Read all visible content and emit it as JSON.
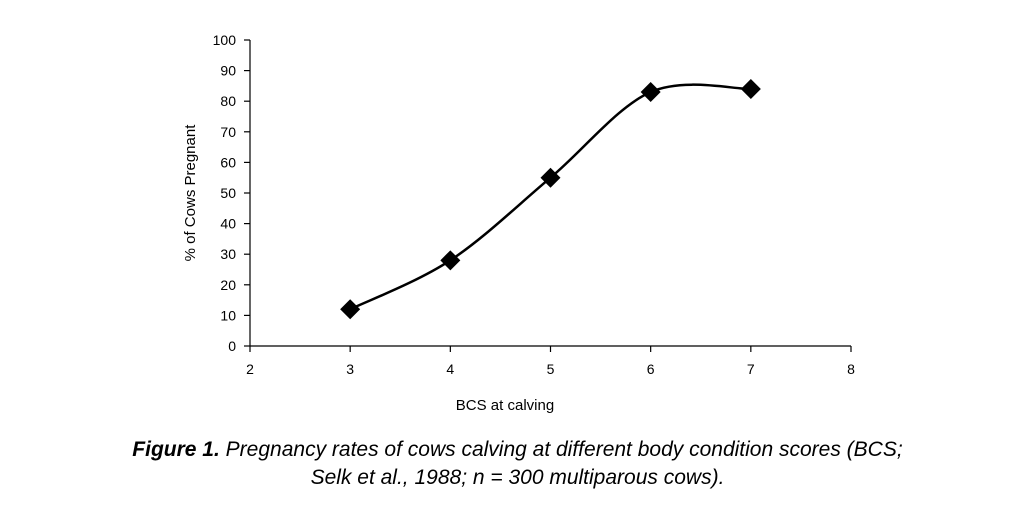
{
  "chart_data": {
    "type": "scatter",
    "xlabel": "BCS at calving",
    "ylabel": "% of Cows Pregnant",
    "xlim": [
      2,
      8
    ],
    "ylim": [
      0,
      100
    ],
    "x_ticks": [
      2,
      3,
      4,
      5,
      6,
      7,
      8
    ],
    "y_ticks": [
      0,
      10,
      20,
      30,
      40,
      50,
      60,
      70,
      80,
      90,
      100
    ],
    "grid": false,
    "marker": "diamond",
    "trendline": "smooth polynomial",
    "series": [
      {
        "x": [
          3,
          4,
          5,
          6,
          7
        ],
        "values": [
          12,
          28,
          55,
          83,
          84
        ]
      }
    ]
  },
  "caption": {
    "label": "Figure 1.",
    "line1": "Pregnancy rates of cows calving at different body condition scores (BCS;",
    "line2": "Selk et al., 1988; n = 300 multiparous cows)."
  }
}
